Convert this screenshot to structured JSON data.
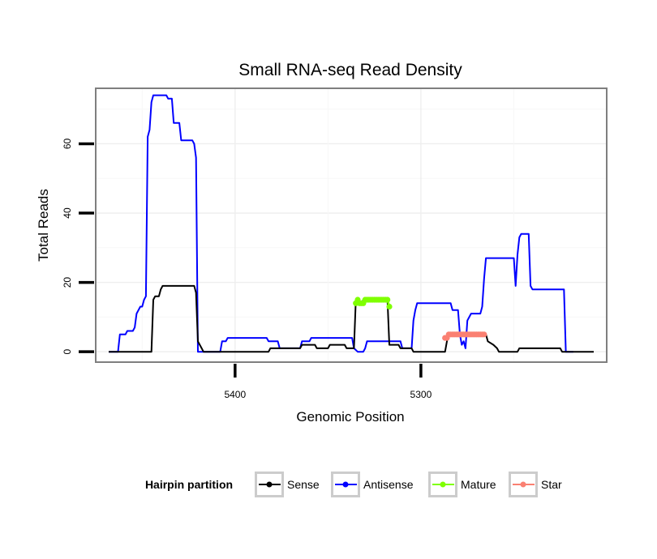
{
  "chart_data": {
    "type": "line",
    "title": "Small RNA-seq Read Density",
    "xlabel": "Genomic Position",
    "ylabel": "Total Reads",
    "x_reversed": true,
    "xlim": [
      5475,
      5200
    ],
    "ylim": [
      -3,
      76
    ],
    "x_ticks": [
      5400,
      5300
    ],
    "x_tick_labels": [
      "5400",
      "5300"
    ],
    "y_ticks": [
      0,
      20,
      40,
      60
    ],
    "y_tick_labels": [
      "0",
      "20",
      "40",
      "60"
    ],
    "grid": true,
    "legend": {
      "title": "Hairpin partition",
      "position": "bottom",
      "entries": [
        {
          "label": "Sense",
          "color": "#000000"
        },
        {
          "label": "Antisense",
          "color": "#0000ff"
        },
        {
          "label": "Mature",
          "color": "#7fff00"
        },
        {
          "label": "Star",
          "color": "#fa8072"
        }
      ]
    },
    "series": [
      {
        "name": "Antisense",
        "color": "#0000ff",
        "points": [
          [
            5468,
            0
          ],
          [
            5463,
            0
          ],
          [
            5462,
            5
          ],
          [
            5459,
            5
          ],
          [
            5458,
            6
          ],
          [
            5455,
            6
          ],
          [
            5454,
            7
          ],
          [
            5453,
            11
          ],
          [
            5452,
            12
          ],
          [
            5451,
            13
          ],
          [
            5450,
            13
          ],
          [
            5449,
            15
          ],
          [
            5448,
            16
          ],
          [
            5447,
            62
          ],
          [
            5446,
            64
          ],
          [
            5445,
            72
          ],
          [
            5444,
            74
          ],
          [
            5437,
            74
          ],
          [
            5436,
            73
          ],
          [
            5434,
            73
          ],
          [
            5433,
            66
          ],
          [
            5430,
            66
          ],
          [
            5429,
            61
          ],
          [
            5423,
            61
          ],
          [
            5422,
            60
          ],
          [
            5421,
            56
          ],
          [
            5420,
            0
          ],
          [
            5408,
            0
          ],
          [
            5407,
            3
          ],
          [
            5405,
            3
          ],
          [
            5404,
            4
          ],
          [
            5383,
            4
          ],
          [
            5382,
            3
          ],
          [
            5377,
            3
          ],
          [
            5376,
            1
          ],
          [
            5365,
            1
          ],
          [
            5364,
            3
          ],
          [
            5360,
            3
          ],
          [
            5359,
            4
          ],
          [
            5337,
            4
          ],
          [
            5336,
            1
          ],
          [
            5334,
            0
          ],
          [
            5331,
            0
          ],
          [
            5330,
            1
          ],
          [
            5329,
            3
          ],
          [
            5311,
            3
          ],
          [
            5310,
            1
          ],
          [
            5305,
            1
          ],
          [
            5304,
            9
          ],
          [
            5303,
            12
          ],
          [
            5302,
            14
          ],
          [
            5284,
            14
          ],
          [
            5283,
            12
          ],
          [
            5280,
            12
          ],
          [
            5279,
            5
          ],
          [
            5278,
            2
          ],
          [
            5277,
            3
          ],
          [
            5276,
            1
          ],
          [
            5275,
            9
          ],
          [
            5274,
            10
          ],
          [
            5273,
            11
          ],
          [
            5268,
            11
          ],
          [
            5267,
            13
          ],
          [
            5266,
            21
          ],
          [
            5265,
            27
          ],
          [
            5250,
            27
          ],
          [
            5249,
            19
          ],
          [
            5248,
            28
          ],
          [
            5247,
            33
          ],
          [
            5246,
            34
          ],
          [
            5242,
            34
          ],
          [
            5241,
            19
          ],
          [
            5240,
            18
          ],
          [
            5223,
            18
          ],
          [
            5222,
            0
          ],
          [
            5218,
            0
          ]
        ]
      },
      {
        "name": "Sense",
        "color": "#000000",
        "points": [
          [
            5468,
            0
          ],
          [
            5445,
            0
          ],
          [
            5444,
            15
          ],
          [
            5443,
            16
          ],
          [
            5441,
            16
          ],
          [
            5440,
            18
          ],
          [
            5439,
            19
          ],
          [
            5422,
            19
          ],
          [
            5421,
            17
          ],
          [
            5420,
            3
          ],
          [
            5419,
            2
          ],
          [
            5418,
            1
          ],
          [
            5417,
            0
          ],
          [
            5382,
            0
          ],
          [
            5381,
            1
          ],
          [
            5365,
            1
          ],
          [
            5364,
            2
          ],
          [
            5357,
            2
          ],
          [
            5356,
            1
          ],
          [
            5350,
            1
          ],
          [
            5349,
            2
          ],
          [
            5341,
            2
          ],
          [
            5340,
            1
          ],
          [
            5336,
            1
          ],
          [
            5335,
            15
          ],
          [
            5334,
            14
          ],
          [
            5332,
            14
          ],
          [
            5331,
            15
          ],
          [
            5318,
            15
          ],
          [
            5317,
            2
          ],
          [
            5312,
            2
          ],
          [
            5311,
            1
          ],
          [
            5305,
            1
          ],
          [
            5304,
            0
          ],
          [
            5287,
            0
          ],
          [
            5286,
            3
          ],
          [
            5285,
            5
          ],
          [
            5265,
            5
          ],
          [
            5264,
            3
          ],
          [
            5261,
            2
          ],
          [
            5259,
            1
          ],
          [
            5258,
            0
          ],
          [
            5248,
            0
          ],
          [
            5247,
            1
          ],
          [
            5225,
            1
          ],
          [
            5224,
            0
          ],
          [
            5207,
            0
          ]
        ]
      },
      {
        "name": "Mature",
        "color": "#7fff00",
        "points": [
          [
            5335,
            14
          ],
          [
            5334,
            15
          ],
          [
            5333,
            14
          ],
          [
            5332,
            14
          ],
          [
            5331,
            14
          ],
          [
            5330,
            15
          ],
          [
            5329,
            15
          ],
          [
            5328,
            15
          ],
          [
            5327,
            15
          ],
          [
            5326,
            15
          ],
          [
            5325,
            15
          ],
          [
            5324,
            15
          ],
          [
            5323,
            15
          ],
          [
            5322,
            15
          ],
          [
            5321,
            15
          ],
          [
            5320,
            15
          ],
          [
            5319,
            15
          ],
          [
            5318,
            15
          ],
          [
            5317,
            13
          ]
        ]
      },
      {
        "name": "Star",
        "color": "#fa8072",
        "points": [
          [
            5287,
            4
          ],
          [
            5286,
            4
          ],
          [
            5285,
            5
          ],
          [
            5284,
            5
          ],
          [
            5283,
            5
          ],
          [
            5282,
            5
          ],
          [
            5281,
            5
          ],
          [
            5280,
            5
          ],
          [
            5279,
            5
          ],
          [
            5278,
            5
          ],
          [
            5277,
            5
          ],
          [
            5276,
            5
          ],
          [
            5275,
            5
          ],
          [
            5274,
            5
          ],
          [
            5273,
            5
          ],
          [
            5272,
            5
          ],
          [
            5271,
            5
          ],
          [
            5270,
            5
          ],
          [
            5269,
            5
          ],
          [
            5268,
            5
          ],
          [
            5267,
            5
          ],
          [
            5266,
            5
          ]
        ]
      }
    ]
  }
}
